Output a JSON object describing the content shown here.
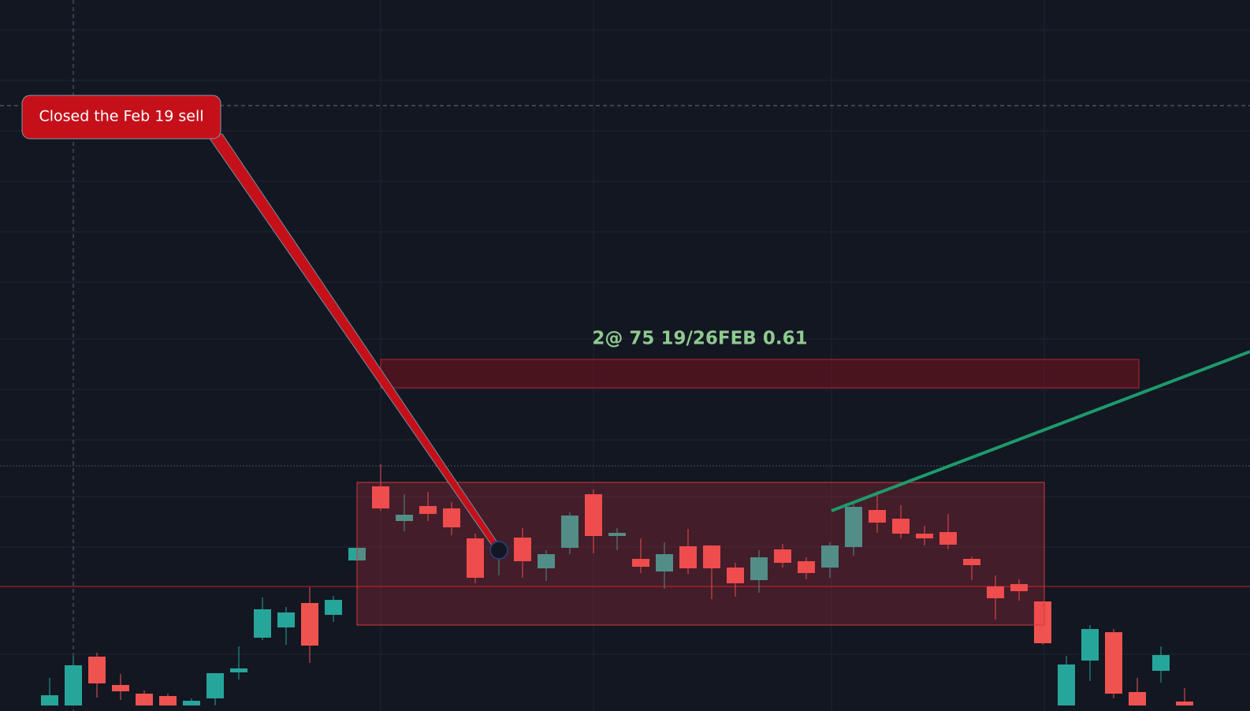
{
  "chart_data": {
    "type": "candlestick",
    "ylim": [
      0,
      902
    ],
    "up_color": "#26a69a",
    "down_color": "#ef5350",
    "open": [
      7,
      7,
      69,
      33,
      22,
      19,
      7,
      16,
      49,
      93,
      106,
      137,
      122,
      191,
      285,
      241,
      260,
      257,
      219,
      201,
      220,
      181,
      207,
      275,
      222,
      193,
      177,
      209,
      210,
      182,
      166,
      205,
      190,
      182,
      208,
      255,
      244,
      225,
      227,
      193,
      158,
      161,
      139,
      7,
      64,
      100,
      24,
      51,
      12
    ],
    "high": [
      42,
      70,
      74,
      47,
      26,
      22,
      16,
      48,
      82,
      144,
      132,
      157,
      146,
      209,
      313,
      275,
      278,
      265,
      225,
      212,
      232,
      204,
      252,
      281,
      232,
      219,
      214,
      231,
      210,
      188,
      204,
      212,
      195,
      214,
      266,
      279,
      261,
      235,
      250,
      196,
      172,
      167,
      139,
      70,
      109,
      104,
      42,
      82,
      29
    ],
    "low": [
      7,
      7,
      17,
      14,
      7,
      7,
      7,
      7,
      40,
      90,
      84,
      61,
      113,
      189,
      254,
      228,
      241,
      223,
      162,
      172,
      169,
      165,
      199,
      200,
      204,
      175,
      155,
      174,
      142,
      145,
      150,
      182,
      167,
      169,
      197,
      226,
      219,
      210,
      205,
      166,
      116,
      140,
      84,
      7,
      38,
      16,
      7,
      36,
      7
    ],
    "close": [
      20,
      58,
      35,
      25,
      7,
      7,
      13,
      48,
      54,
      129,
      125,
      83,
      141,
      207,
      257,
      249,
      250,
      233,
      169,
      205,
      190,
      199,
      248,
      222,
      226,
      183,
      199,
      181,
      181,
      162,
      195,
      188,
      175,
      210,
      259,
      239,
      225,
      219,
      211,
      185,
      143,
      152,
      86,
      59,
      104,
      22,
      7,
      71,
      7
    ],
    "levels": [
      768,
      311,
      158
    ],
    "annotations": [
      "Closed the Feb 19 sell",
      "2@ 75 19/26FEB 0.61"
    ]
  }
}
